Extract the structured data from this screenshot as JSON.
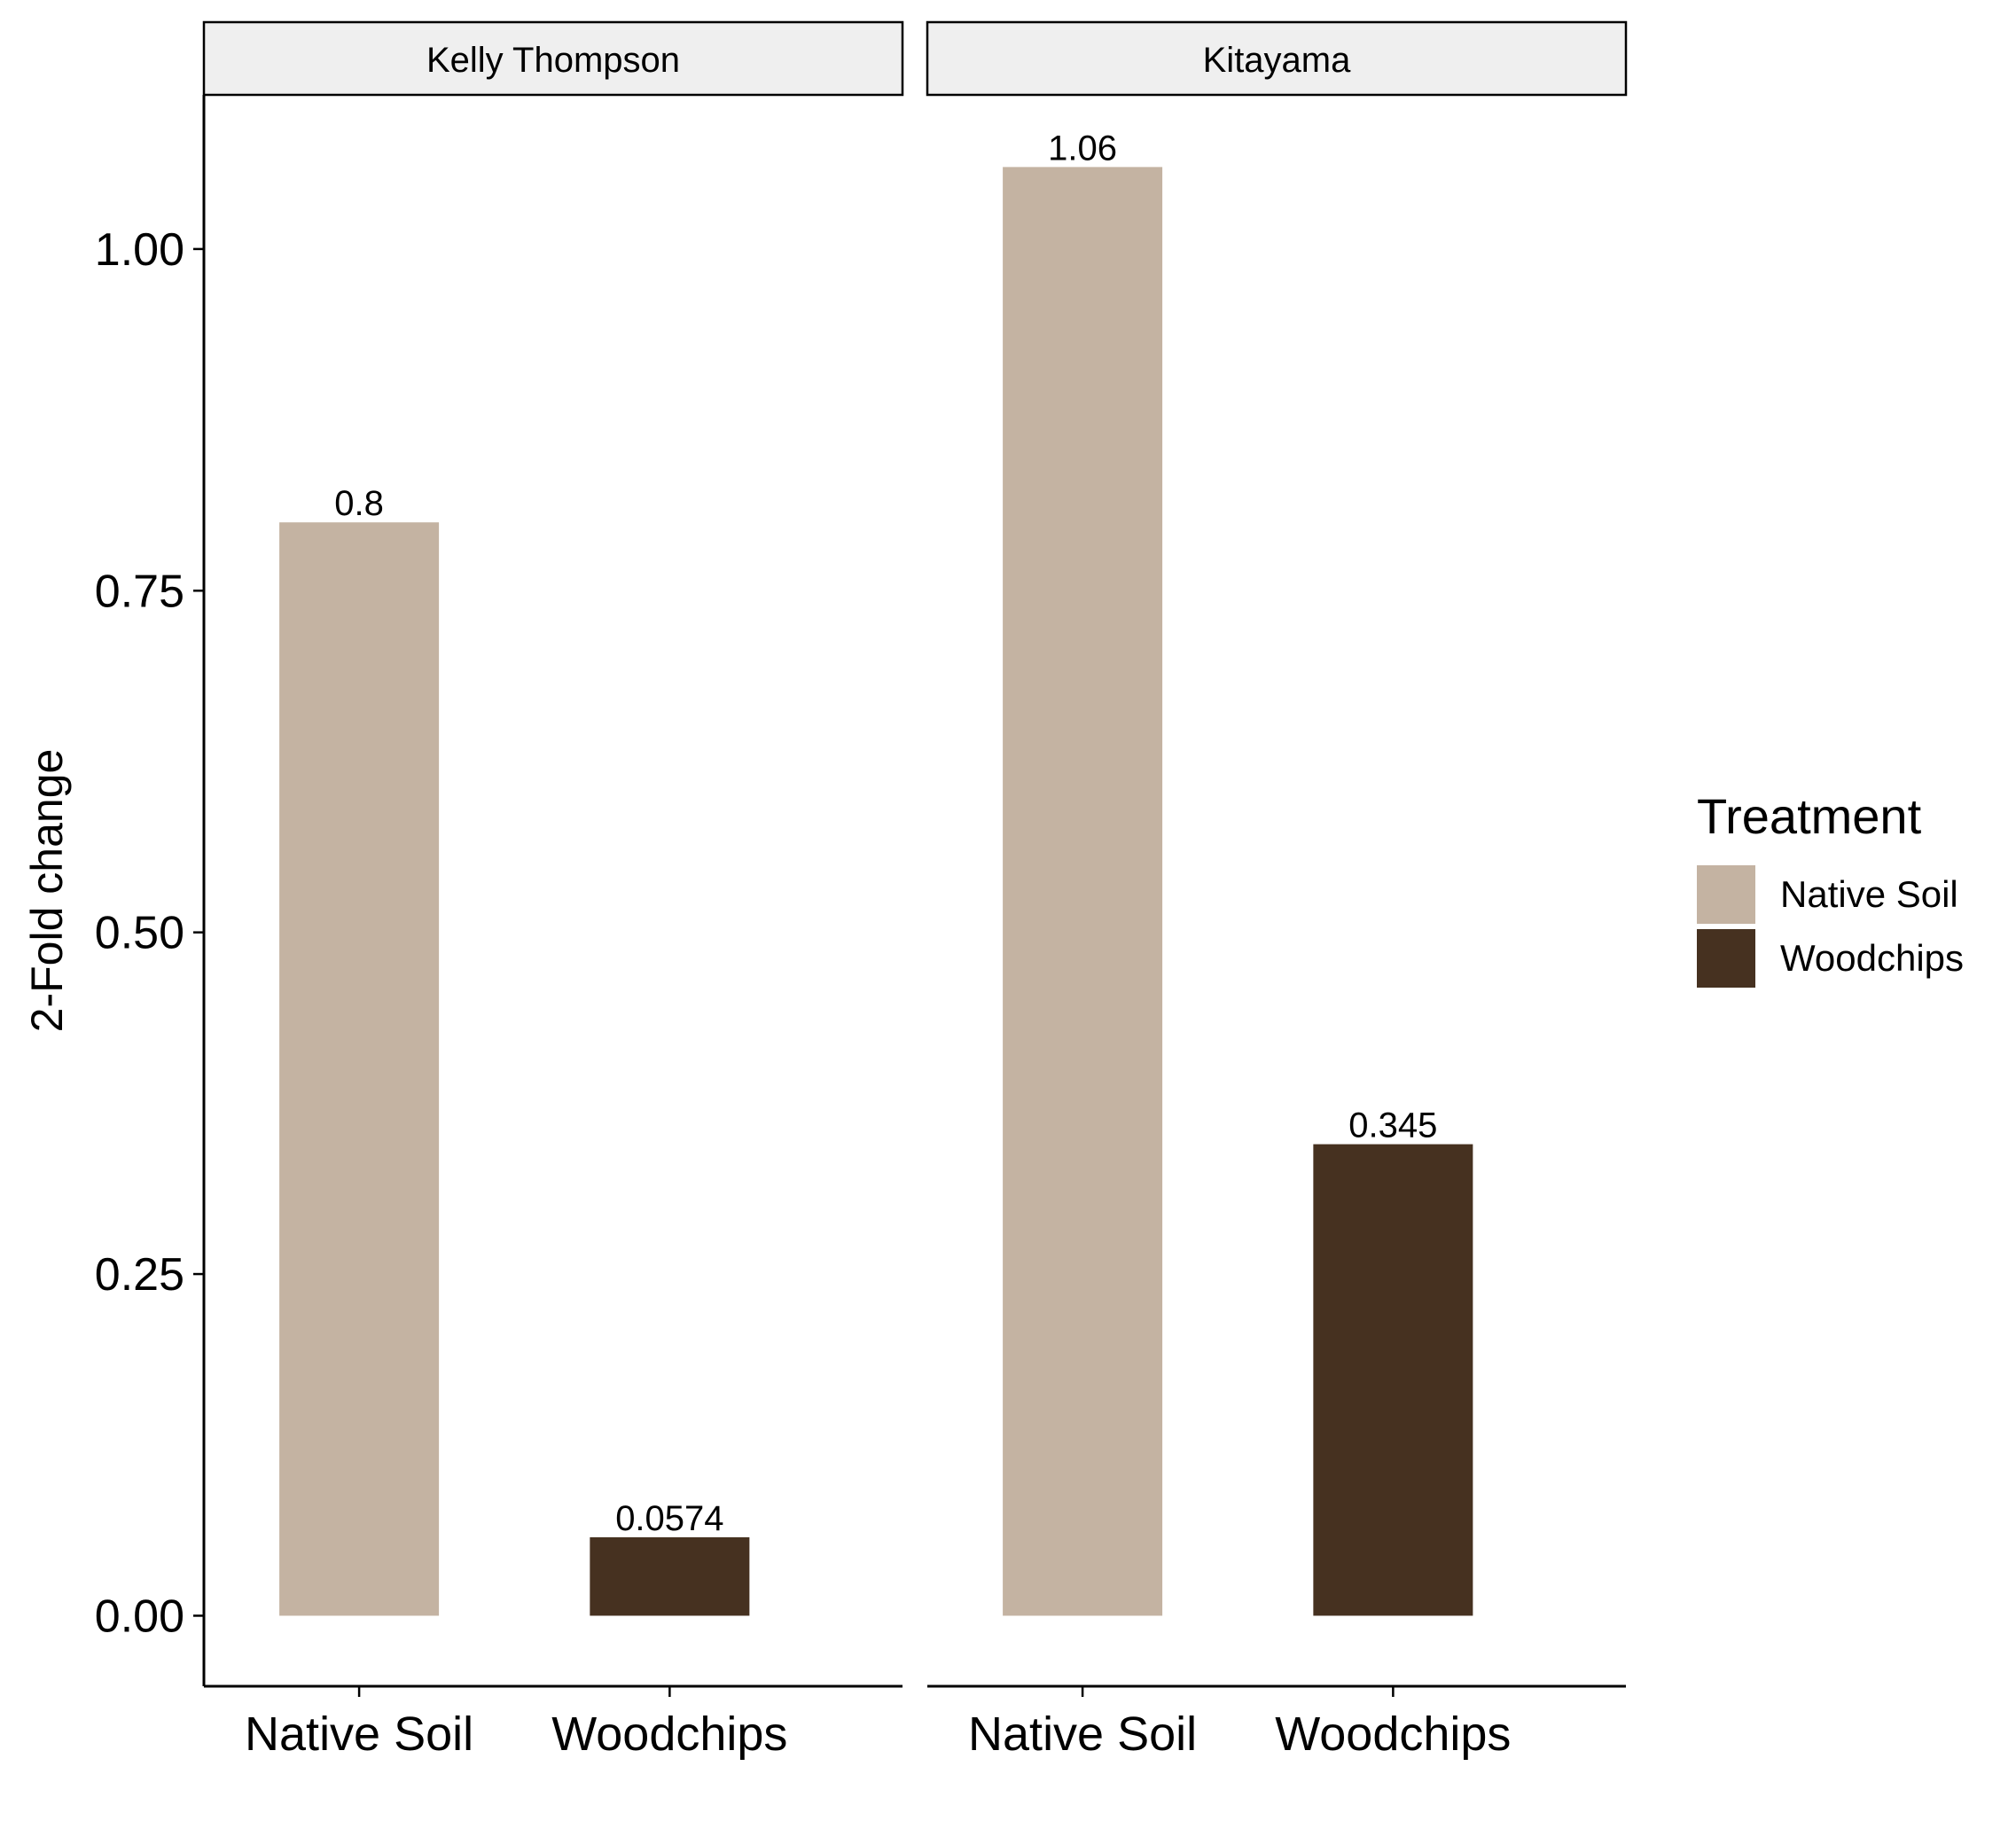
{
  "chart_data": {
    "type": "bar",
    "ylabel": "2-Fold change",
    "ylim": [
      -0.0516,
      1.1128
    ],
    "yticks": [
      0.0,
      0.25,
      0.5,
      0.75,
      1.0
    ],
    "ytick_labels": [
      "0.00",
      "0.25",
      "0.50",
      "0.75",
      "1.00"
    ],
    "categories": [
      "Native Soil",
      "Woodchips"
    ],
    "facets": [
      {
        "title": "Kelly Thompson",
        "values": [
          0.8,
          0.0574
        ],
        "labels": [
          "0.8",
          "0.0574"
        ]
      },
      {
        "title": "Kitayama",
        "values": [
          1.06,
          0.345
        ],
        "labels": [
          "1.06",
          "0.345"
        ]
      }
    ],
    "legend": {
      "title": "Treatment",
      "position": "right",
      "items": [
        {
          "label": "Native Soil",
          "color": "#C4B3A2"
        },
        {
          "label": "Woodchips",
          "color": "#463120"
        }
      ]
    },
    "grid": false
  }
}
